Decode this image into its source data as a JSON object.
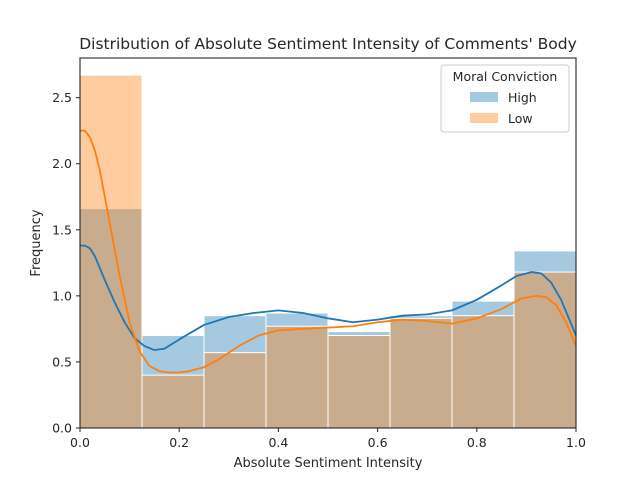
{
  "chart_data": {
    "type": "histogram",
    "title": "Distribution of Absolute Sentiment Intensity of Comments' Body",
    "xlabel": "Absolute Sentiment Intensity",
    "ylabel": "Frequency",
    "xlim": [
      0,
      1
    ],
    "ylim": [
      0,
      2.8
    ],
    "xticks": [
      0.0,
      0.2,
      0.4,
      0.6,
      0.8,
      1.0
    ],
    "yticks": [
      0.0,
      0.5,
      1.0,
      1.5,
      2.0,
      2.5
    ],
    "bin_edges": [
      0,
      0.125,
      0.25,
      0.375,
      0.5,
      0.625,
      0.75,
      0.875,
      1.0
    ],
    "legend": {
      "title": "Moral Conviction",
      "placement": "top-right"
    },
    "grid": false,
    "series": [
      {
        "name": "High",
        "color": "#1f77b4",
        "bar_values": [
          1.66,
          0.7,
          0.85,
          0.87,
          0.73,
          0.85,
          0.96,
          1.34
        ],
        "kde": [
          [
            0,
            1.38
          ],
          [
            0.01,
            1.38
          ],
          [
            0.02,
            1.36
          ],
          [
            0.03,
            1.3
          ],
          [
            0.05,
            1.12
          ],
          [
            0.07,
            0.95
          ],
          [
            0.09,
            0.8
          ],
          [
            0.11,
            0.68
          ],
          [
            0.13,
            0.62
          ],
          [
            0.15,
            0.59
          ],
          [
            0.17,
            0.6
          ],
          [
            0.2,
            0.67
          ],
          [
            0.25,
            0.78
          ],
          [
            0.3,
            0.84
          ],
          [
            0.35,
            0.87
          ],
          [
            0.4,
            0.89
          ],
          [
            0.45,
            0.87
          ],
          [
            0.5,
            0.83
          ],
          [
            0.55,
            0.8
          ],
          [
            0.6,
            0.82
          ],
          [
            0.65,
            0.85
          ],
          [
            0.7,
            0.86
          ],
          [
            0.75,
            0.89
          ],
          [
            0.8,
            0.97
          ],
          [
            0.85,
            1.08
          ],
          [
            0.88,
            1.15
          ],
          [
            0.91,
            1.18
          ],
          [
            0.93,
            1.17
          ],
          [
            0.95,
            1.1
          ],
          [
            0.97,
            0.97
          ],
          [
            1.0,
            0.7
          ]
        ]
      },
      {
        "name": "Low",
        "color": "#ff7f0e",
        "bar_values": [
          2.67,
          0.4,
          0.57,
          0.77,
          0.7,
          0.83,
          0.85,
          1.18
        ],
        "kde": [
          [
            0,
            2.25
          ],
          [
            0.01,
            2.25
          ],
          [
            0.02,
            2.2
          ],
          [
            0.03,
            2.1
          ],
          [
            0.04,
            1.95
          ],
          [
            0.06,
            1.55
          ],
          [
            0.08,
            1.15
          ],
          [
            0.1,
            0.8
          ],
          [
            0.12,
            0.58
          ],
          [
            0.14,
            0.47
          ],
          [
            0.16,
            0.43
          ],
          [
            0.18,
            0.42
          ],
          [
            0.2,
            0.42
          ],
          [
            0.22,
            0.43
          ],
          [
            0.25,
            0.46
          ],
          [
            0.28,
            0.52
          ],
          [
            0.32,
            0.62
          ],
          [
            0.36,
            0.7
          ],
          [
            0.4,
            0.74
          ],
          [
            0.45,
            0.75
          ],
          [
            0.5,
            0.76
          ],
          [
            0.55,
            0.77
          ],
          [
            0.6,
            0.8
          ],
          [
            0.65,
            0.82
          ],
          [
            0.7,
            0.81
          ],
          [
            0.75,
            0.79
          ],
          [
            0.8,
            0.83
          ],
          [
            0.85,
            0.9
          ],
          [
            0.89,
            0.98
          ],
          [
            0.92,
            1.0
          ],
          [
            0.94,
            0.99
          ],
          [
            0.96,
            0.93
          ],
          [
            0.98,
            0.8
          ],
          [
            1.0,
            0.62
          ]
        ]
      }
    ]
  }
}
